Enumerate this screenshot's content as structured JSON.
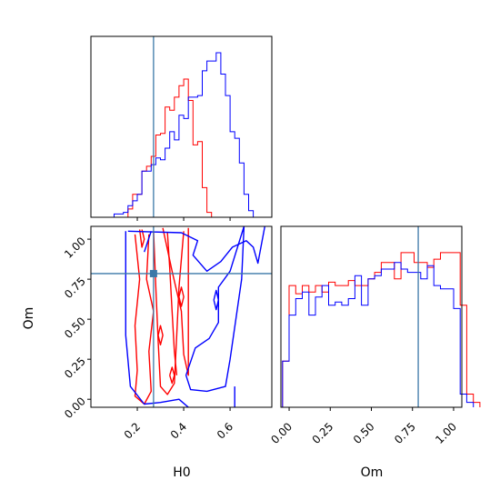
{
  "chart_data": {
    "type": "corner",
    "parameters": [
      "H0",
      "Om"
    ],
    "truth": {
      "H0": 0.27,
      "Om": 0.785
    },
    "colors": {
      "red": "#ff0000",
      "blue": "#0000ff",
      "truth": "#3b78a8",
      "axis": "#000000"
    },
    "panels": {
      "h0_hist": {
        "xlim": [
          0.0,
          0.78
        ],
        "ylim": [
          0,
          1.0
        ],
        "bin_width": 0.02,
        "series": [
          {
            "color": "red",
            "bins_start": 0.16,
            "values": [
              0.05,
              0.14,
              0.14,
              0.28,
              0.31,
              0.37,
              0.5,
              0.51,
              0.67,
              0.65,
              0.73,
              0.8,
              0.84,
              0.71,
              0.44,
              0.46,
              0.18,
              0.03
            ]
          },
          {
            "color": "blue",
            "bins_start": 0.1,
            "values": [
              0.02,
              0.02,
              0.03,
              0.07,
              0.1,
              0.14,
              0.28,
              0.28,
              0.32,
              0.36,
              0.35,
              0.42,
              0.52,
              0.47,
              0.62,
              0.6,
              0.73,
              0.73,
              0.74,
              0.89,
              0.95,
              0.95,
              1.0,
              0.87,
              0.74,
              0.52,
              0.48,
              0.33,
              0.14,
              0.04
            ]
          }
        ]
      },
      "om_hist": {
        "xlim": [
          -0.05,
          1.05
        ],
        "ylim": [
          0,
          1.0
        ],
        "bin_width": 0.04,
        "series": [
          {
            "color": "red",
            "bins_start": -0.04,
            "values": [
              0.28,
              0.74,
              0.69,
              0.74,
              0.7,
              0.74,
              0.7,
              0.76,
              0.74,
              0.74,
              0.77,
              0.74,
              0.74,
              0.78,
              0.82,
              0.88,
              0.88,
              0.78,
              0.94,
              0.94,
              0.88,
              0.88,
              0.85,
              0.9,
              0.94,
              0.94,
              0.94,
              0.62,
              0.08,
              0.03
            ]
          },
          {
            "color": "blue",
            "bins_start": -0.04,
            "values": [
              0.28,
              0.56,
              0.66,
              0.7,
              0.56,
              0.67,
              0.74,
              0.62,
              0.64,
              0.62,
              0.66,
              0.8,
              0.62,
              0.78,
              0.8,
              0.84,
              0.84,
              0.88,
              0.84,
              0.82,
              0.82,
              0.78,
              0.86,
              0.74,
              0.72,
              0.72,
              0.6,
              0.08,
              0.03
            ]
          }
        ]
      },
      "contour": {
        "xlim": [
          0.0,
          0.78
        ],
        "ylim": [
          -0.05,
          1.08
        ],
        "series": [
          {
            "color": "red",
            "paths": [
              [
                [
                  0.19,
                  1.03
                ],
                [
                  0.21,
                  0.75
                ],
                [
                  0.19,
                  0.46
                ],
                [
                  0.2,
                  0.18
                ],
                [
                  0.19,
                  0.02
                ],
                [
                  0.23,
                  -0.03
                ],
                [
                  0.26,
                  0.05
                ],
                [
                  0.25,
                  0.3
                ],
                [
                  0.27,
                  0.55
                ],
                [
                  0.24,
                  0.75
                ],
                [
                  0.25,
                  1.03
                ]
              ],
              [
                [
                  0.27,
                  1.05
                ],
                [
                  0.28,
                  0.7
                ],
                [
                  0.29,
                  0.36
                ],
                [
                  0.3,
                  0.08
                ],
                [
                  0.33,
                  0.03
                ],
                [
                  0.36,
                  0.1
                ],
                [
                  0.37,
                  0.4
                ],
                [
                  0.38,
                  0.7
                ],
                [
                  0.4,
                  1.05
                ]
              ],
              [
                [
                  0.31,
                  1.07
                ],
                [
                  0.35,
                  0.8
                ],
                [
                  0.39,
                  0.55
                ],
                [
                  0.4,
                  0.28
                ],
                [
                  0.42,
                  0.15
                ],
                [
                  0.42,
                  0.35
                ],
                [
                  0.42,
                  0.55
                ],
                [
                  0.42,
                  0.8
                ],
                [
                  0.42,
                  1.07
                ]
              ],
              [
                [
                  0.33,
                  1.04
                ],
                [
                  0.34,
                  0.82
                ],
                [
                  0.35,
                  0.55
                ],
                [
                  0.36,
                  0.3
                ],
                [
                  0.37,
                  0.15
                ]
              ],
              [
                [
                  0.21,
                  1.06
                ],
                [
                  0.22,
                  0.95
                ],
                [
                  0.23,
                  1.0
                ],
                [
                  0.22,
                  1.06
                ]
              ],
              [
                [
                  0.29,
                  0.4
                ],
                [
                  0.3,
                  0.34
                ],
                [
                  0.31,
                  0.4
                ],
                [
                  0.3,
                  0.46
                ],
                [
                  0.29,
                  0.4
                ]
              ],
              [
                [
                  0.34,
                  0.15
                ],
                [
                  0.35,
                  0.1
                ],
                [
                  0.36,
                  0.15
                ],
                [
                  0.35,
                  0.2
                ],
                [
                  0.34,
                  0.15
                ]
              ],
              [
                [
                  0.38,
                  0.64
                ],
                [
                  0.39,
                  0.58
                ],
                [
                  0.4,
                  0.64
                ],
                [
                  0.39,
                  0.7
                ],
                [
                  0.38,
                  0.64
                ]
              ]
            ]
          },
          {
            "color": "blue",
            "paths": [
              [
                [
                  0.15,
                  1.05
                ],
                [
                  0.15,
                  0.4
                ],
                [
                  0.17,
                  0.08
                ],
                [
                  0.23,
                  -0.03
                ],
                [
                  0.3,
                  -0.02
                ],
                [
                  0.38,
                  0.0
                ],
                [
                  0.42,
                  -0.05
                ]
              ],
              [
                [
                  0.16,
                  1.05
                ],
                [
                  0.39,
                  1.04
                ],
                [
                  0.46,
                  0.99
                ],
                [
                  0.44,
                  0.9
                ],
                [
                  0.5,
                  0.8
                ],
                [
                  0.56,
                  0.86
                ],
                [
                  0.61,
                  0.95
                ],
                [
                  0.67,
                  0.99
                ],
                [
                  0.7,
                  0.95
                ],
                [
                  0.72,
                  0.85
                ],
                [
                  0.75,
                  1.08
                ]
              ],
              [
                [
                  0.23,
                  0.92
                ],
                [
                  0.26,
                  1.05
                ]
              ],
              [
                [
                  0.66,
                  1.08
                ],
                [
                  0.65,
                  0.75
                ],
                [
                  0.62,
                  0.45
                ],
                [
                  0.6,
                  0.25
                ],
                [
                  0.58,
                  0.08
                ],
                [
                  0.5,
                  0.05
                ],
                [
                  0.43,
                  0.06
                ],
                [
                  0.41,
                  0.15
                ],
                [
                  0.45,
                  0.32
                ],
                [
                  0.51,
                  0.38
                ],
                [
                  0.55,
                  0.48
                ],
                [
                  0.55,
                  0.7
                ],
                [
                  0.6,
                  0.8
                ],
                [
                  0.66,
                  1.08
                ]
              ],
              [
                [
                  0.53,
                  0.62
                ],
                [
                  0.54,
                  0.56
                ],
                [
                  0.55,
                  0.62
                ],
                [
                  0.54,
                  0.68
                ],
                [
                  0.53,
                  0.62
                ]
              ],
              [
                [
                  0.62,
                  -0.05
                ],
                [
                  0.62,
                  0.08
                ]
              ]
            ]
          }
        ]
      }
    },
    "ticks": {
      "h0": [
        "0.2",
        "0.4",
        "0.6"
      ],
      "om_y": [
        "0.00",
        "0.25",
        "0.50",
        "0.75",
        "1.00"
      ],
      "om_x": [
        "0.00",
        "0.25",
        "0.50",
        "0.75",
        "1.00"
      ]
    },
    "xlabel_h0": "H0",
    "xlabel_om": "Om",
    "ylabel_om": "Om"
  }
}
